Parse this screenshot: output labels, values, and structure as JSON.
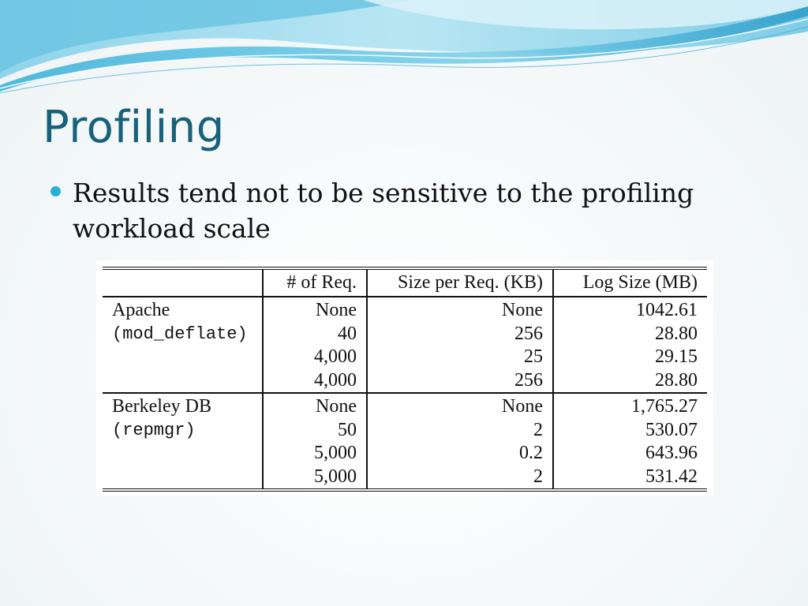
{
  "slide": {
    "title": "Profiling",
    "bullets": [
      "Results tend not to be sensitive to the profiling workload scale"
    ],
    "colors": {
      "title": "#17627a",
      "bullet": "#2aaed9",
      "wave_light": "#a6dcec",
      "wave_mid": "#5cc0df",
      "wave_dark": "#2a9fc7"
    }
  },
  "table": {
    "headers": [
      "",
      "# of Req.",
      "Size per Req. (KB)",
      "Log Size (MB)"
    ],
    "groups": [
      {
        "name": "Apache",
        "module": "(mod_deflate)",
        "rows": [
          {
            "requests": "None",
            "size_per_req": "None",
            "log_size": "1042.61"
          },
          {
            "requests": "40",
            "size_per_req": "256",
            "log_size": "28.80"
          },
          {
            "requests": "4,000",
            "size_per_req": "25",
            "log_size": "29.15"
          },
          {
            "requests": "4,000",
            "size_per_req": "256",
            "log_size": "28.80"
          }
        ]
      },
      {
        "name": "Berkeley DB",
        "module": "(repmgr)",
        "rows": [
          {
            "requests": "None",
            "size_per_req": "None",
            "log_size": "1,765.27"
          },
          {
            "requests": "50",
            "size_per_req": "2",
            "log_size": "530.07"
          },
          {
            "requests": "5,000",
            "size_per_req": "0.2",
            "log_size": "643.96"
          },
          {
            "requests": "5,000",
            "size_per_req": "2",
            "log_size": "531.42"
          }
        ]
      }
    ]
  }
}
